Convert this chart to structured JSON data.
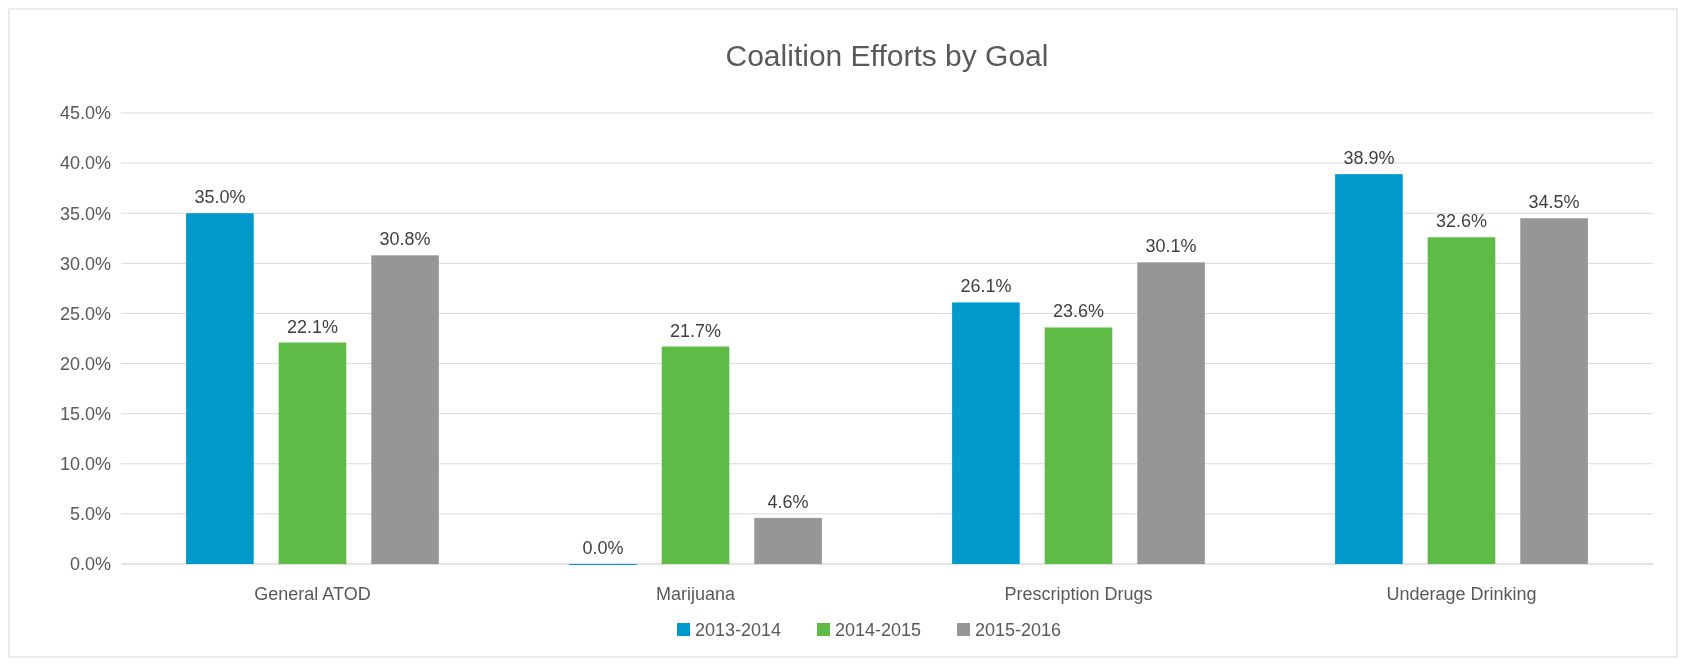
{
  "chart_data": {
    "type": "bar",
    "title": "Coalition Efforts by Goal",
    "categories": [
      "General ATOD",
      "Marijuana",
      "Prescription Drugs",
      "Underage Drinking"
    ],
    "series": [
      {
        "name": "2013-2014",
        "color": "#0099cc",
        "values": [
          35.0,
          0.0,
          26.1,
          38.9
        ],
        "value_labels": [
          "35.0%",
          "0.0%",
          "26.1%",
          "38.9%"
        ]
      },
      {
        "name": "2014-2015",
        "color": "#5dbb46",
        "values": [
          22.1,
          21.7,
          23.6,
          32.6
        ],
        "value_labels": [
          "22.1%",
          "21.7%",
          "23.6%",
          "32.6%"
        ]
      },
      {
        "name": "2015-2016",
        "color": "#969696",
        "values": [
          30.8,
          4.6,
          30.1,
          34.5
        ],
        "value_labels": [
          "30.8%",
          "4.6%",
          "30.1%",
          "34.5%"
        ]
      }
    ],
    "ylim": [
      0,
      45
    ],
    "yticks": [
      {
        "value": 0,
        "label": "0.0%"
      },
      {
        "value": 5,
        "label": "5.0%"
      },
      {
        "value": 10,
        "label": "10.0%"
      },
      {
        "value": 15,
        "label": "15.0%"
      },
      {
        "value": 20,
        "label": "20.0%"
      },
      {
        "value": 25,
        "label": "25.0%"
      },
      {
        "value": 30,
        "label": "30.0%"
      },
      {
        "value": 35,
        "label": "35.0%"
      },
      {
        "value": 40,
        "label": "40.0%"
      },
      {
        "value": 45,
        "label": "45.0%"
      }
    ],
    "grid": "y",
    "legend": "bottom"
  }
}
